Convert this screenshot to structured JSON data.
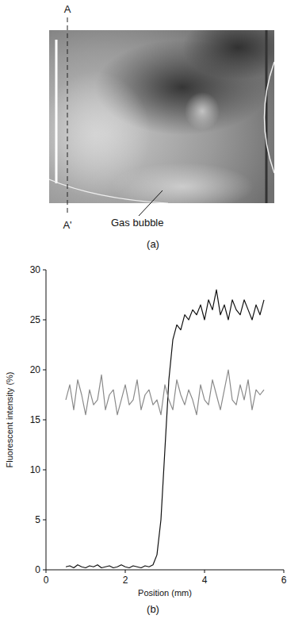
{
  "image": {
    "top_label": "A",
    "bottom_label": "A'",
    "annotation": "Gas bubble",
    "caption": "(a)"
  },
  "chart_data": {
    "type": "line",
    "annotation": "(b)",
    "x_label": "Position (mm)",
    "y_label": "Fluorescent intensity (%)",
    "x": [
      0.5,
      0.6,
      0.7,
      0.8,
      0.9,
      1.0,
      1.1,
      1.2,
      1.3,
      1.4,
      1.5,
      1.6,
      1.7,
      1.8,
      1.9,
      2.0,
      2.1,
      2.2,
      2.3,
      2.4,
      2.5,
      2.6,
      2.7,
      2.8,
      2.9,
      3.0,
      3.1,
      3.2,
      3.3,
      3.4,
      3.5,
      3.6,
      3.7,
      3.8,
      3.9,
      4.0,
      4.1,
      4.2,
      4.3,
      4.4,
      4.5,
      4.6,
      4.7,
      4.8,
      4.9,
      5.0,
      5.1,
      5.2,
      5.3,
      5.4,
      5.5
    ],
    "series": [
      {
        "color": "#111111",
        "values": [
          0.3,
          0.4,
          0.2,
          0.5,
          0.3,
          0.2,
          0.4,
          0.3,
          0.5,
          0.2,
          0.3,
          0.4,
          0.2,
          0.3,
          0.5,
          0.3,
          0.2,
          0.4,
          0.3,
          0.2,
          0.4,
          0.3,
          0.5,
          1.5,
          5,
          12,
          19,
          23,
          24.5,
          24,
          25.5,
          25,
          26,
          25.5,
          26.5,
          25,
          27,
          26,
          28,
          25.5,
          26.5,
          25,
          27,
          26,
          25.5,
          27,
          26,
          25,
          26.5,
          25.5,
          27
        ]
      },
      {
        "color": "#8a8a8a",
        "values": [
          17,
          18.5,
          16,
          19,
          17.5,
          15.5,
          18,
          16.5,
          17,
          19.5,
          16,
          17.5,
          18,
          15.5,
          17,
          18.5,
          16.5,
          17,
          19,
          16,
          17.5,
          18,
          16.5,
          17,
          15.5,
          18.5,
          17,
          16,
          19,
          17.5,
          16.5,
          18,
          17,
          15.5,
          18.5,
          17,
          16.5,
          19,
          17.5,
          16,
          18,
          20,
          17,
          16.5,
          18.5,
          17,
          19,
          16,
          18,
          17.5,
          18
        ]
      }
    ],
    "xlim": [
      0,
      6
    ],
    "xticks": [
      0,
      2,
      4,
      6
    ],
    "ylim": [
      0,
      30
    ],
    "yticks": [
      0,
      5,
      10,
      15,
      20,
      25,
      30
    ]
  }
}
